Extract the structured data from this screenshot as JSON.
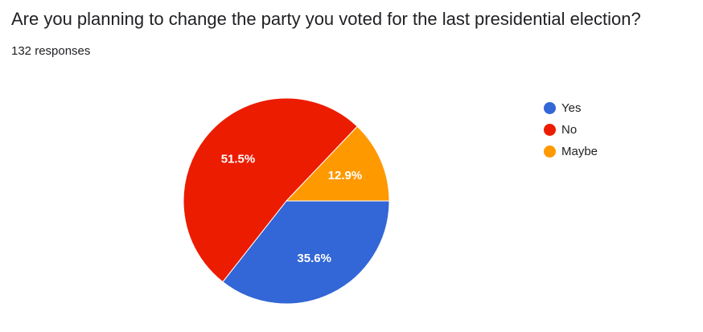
{
  "header": {
    "question": "Are you planning to change the party you voted for the last presidential election?",
    "responses": "132 responses"
  },
  "chart_data": {
    "type": "pie",
    "title": "Are you planning to change the party you voted for the last presidential election?",
    "categories": [
      "Yes",
      "No",
      "Maybe"
    ],
    "values": [
      35.6,
      51.5,
      12.9
    ],
    "labels": [
      "35.6%",
      "51.5%",
      "12.9%"
    ],
    "colors": [
      "#3366d6",
      "#ec1c00",
      "#ff9900"
    ],
    "legend_position": "right"
  }
}
